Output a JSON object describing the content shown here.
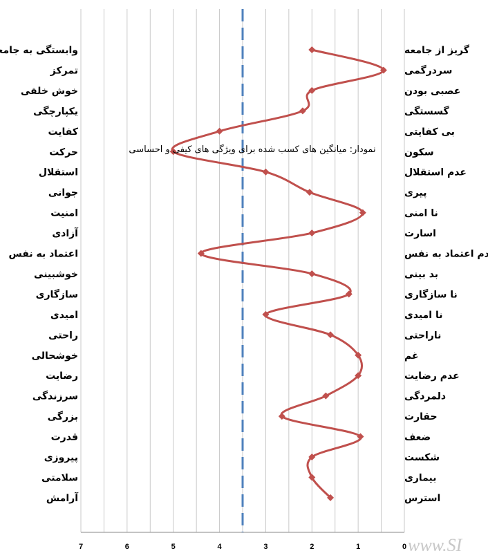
{
  "chart_data": {
    "type": "line",
    "title": "نمودار: میانگین های کسب شده برای ویژگی های کیفی و احساسی",
    "x_reversed": true,
    "xlim": [
      0,
      7
    ],
    "x_ticks": [
      "0",
      "1",
      "2",
      "3",
      "4",
      "5",
      "6",
      "7"
    ],
    "reference_line": 3.5,
    "grid": "vertical",
    "series_color": "#c0504d",
    "reference_color": "#4f81bd",
    "left_labels": [
      "وابستگی به جامعه",
      "تمرکز",
      "خوش خلقی",
      "یکپارچگی",
      "کفایت",
      "حرکت",
      "استقلال",
      "جوانی",
      "امنیت",
      "آزادی",
      "اعتماد به نفس",
      "خوشبینی",
      "سازگاری",
      "امیدی",
      "راحتی",
      "خوشحالی",
      "رضایت",
      "سرزندگی",
      "بزرگی",
      "قدرت",
      "پیروزی",
      "سلامتی",
      "آرامش"
    ],
    "right_labels": [
      "گریز از جامعه",
      "سردرگمی",
      "عصبی بودن",
      "گسستگی",
      "بی کفایتی",
      "سکون",
      "عدم استقلال",
      "پیری",
      "نا امنی",
      "اسارت",
      "عدم اعتماد به نفس",
      "بد بینی",
      "نا سازگاری",
      "نا امیدی",
      "ناراحتی",
      "غم",
      "عدم رضایت",
      "دلمردگی",
      "حقارت",
      "ضعف",
      "شکست",
      "بیماری",
      "استرس"
    ],
    "values": [
      2.0,
      0.45,
      2.0,
      2.2,
      4.0,
      5.0,
      3.0,
      2.05,
      0.9,
      2.0,
      4.4,
      2.0,
      1.2,
      3.0,
      1.6,
      1.0,
      1.0,
      1.7,
      2.65,
      0.95,
      2.0,
      2.0,
      1.6
    ]
  },
  "watermark": "www.SI"
}
